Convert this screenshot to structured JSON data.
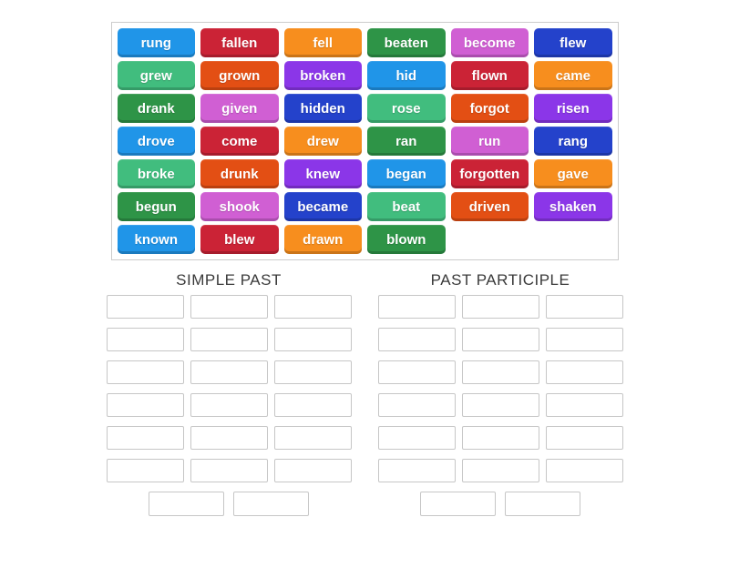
{
  "palette": {
    "blue": "#2095e8",
    "crimson": "#cb2336",
    "orange": "#f78e1e",
    "green": "#2e9447",
    "seagreen": "#41bd7e",
    "orchid": "#d05fd3",
    "darkblue": "#2442cb",
    "orangered": "#e34f14",
    "purple": "#8b36e8"
  },
  "board": {
    "tiles": [
      {
        "label": "rung",
        "color": "blue"
      },
      {
        "label": "fallen",
        "color": "crimson"
      },
      {
        "label": "fell",
        "color": "orange"
      },
      {
        "label": "beaten",
        "color": "green"
      },
      {
        "label": "become",
        "color": "orchid"
      },
      {
        "label": "flew",
        "color": "darkblue"
      },
      {
        "label": "grew",
        "color": "seagreen"
      },
      {
        "label": "grown",
        "color": "orangered"
      },
      {
        "label": "broken",
        "color": "purple"
      },
      {
        "label": "hid",
        "color": "blue"
      },
      {
        "label": "flown",
        "color": "crimson"
      },
      {
        "label": "came",
        "color": "orange"
      },
      {
        "label": "drank",
        "color": "green"
      },
      {
        "label": "given",
        "color": "orchid"
      },
      {
        "label": "hidden",
        "color": "darkblue"
      },
      {
        "label": "rose",
        "color": "seagreen"
      },
      {
        "label": "forgot",
        "color": "orangered"
      },
      {
        "label": "risen",
        "color": "purple"
      },
      {
        "label": "drove",
        "color": "blue"
      },
      {
        "label": "come",
        "color": "crimson"
      },
      {
        "label": "drew",
        "color": "orange"
      },
      {
        "label": "ran",
        "color": "green"
      },
      {
        "label": "run",
        "color": "orchid"
      },
      {
        "label": "rang",
        "color": "darkblue"
      },
      {
        "label": "broke",
        "color": "seagreen"
      },
      {
        "label": "drunk",
        "color": "orangered"
      },
      {
        "label": "knew",
        "color": "purple"
      },
      {
        "label": "began",
        "color": "blue"
      },
      {
        "label": "forgotten",
        "color": "crimson"
      },
      {
        "label": "gave",
        "color": "orange"
      },
      {
        "label": "begun",
        "color": "green"
      },
      {
        "label": "shook",
        "color": "orchid"
      },
      {
        "label": "became",
        "color": "darkblue"
      },
      {
        "label": "beat",
        "color": "seagreen"
      },
      {
        "label": "driven",
        "color": "orangered"
      },
      {
        "label": "shaken",
        "color": "purple"
      },
      {
        "label": "known",
        "color": "blue"
      },
      {
        "label": "blew",
        "color": "crimson"
      },
      {
        "label": "drawn",
        "color": "orange"
      },
      {
        "label": "blown",
        "color": "green"
      }
    ]
  },
  "groups": [
    {
      "title": "SIMPLE PAST",
      "slot_count": 18,
      "bottom_slot_count": 2
    },
    {
      "title": "PAST PARTICIPLE",
      "slot_count": 18,
      "bottom_slot_count": 2
    }
  ]
}
